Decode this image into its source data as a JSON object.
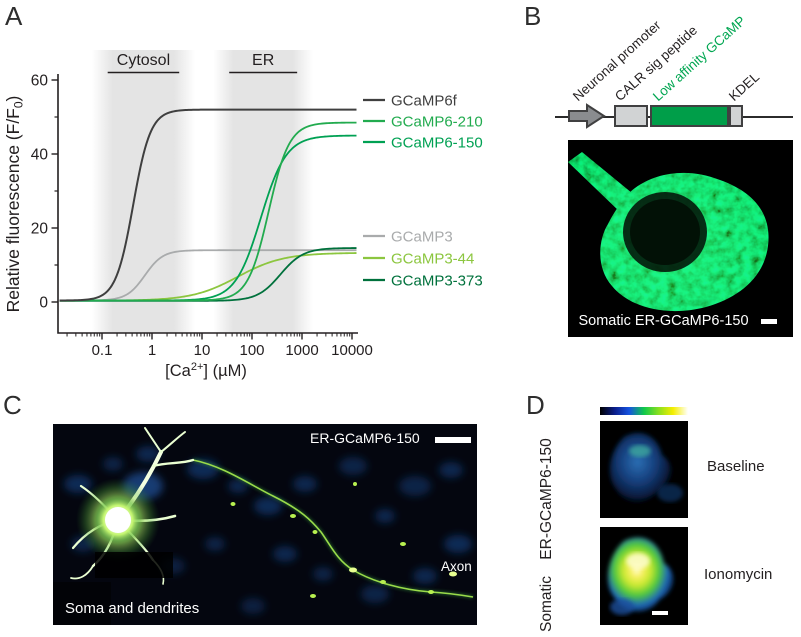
{
  "panel_a": {
    "label": "A"
  },
  "chart_data": {
    "type": "line",
    "x_scale": "log",
    "xlabel": {
      "pre": "[Ca",
      "sup": "2+",
      "post": "] (µM)"
    },
    "ylabel": {
      "pre": "Relative fluorescence (F/F",
      "sub": "0",
      "post": ")"
    },
    "xlim_uM": [
      0.014,
      13000
    ],
    "ylim": [
      0,
      60
    ],
    "xticks": [
      0.1,
      1,
      10,
      100,
      1000,
      10000
    ],
    "xtick_labels": [
      "0.1",
      "1",
      "10",
      "100",
      "1000",
      "10000"
    ],
    "yticks": [
      0,
      20,
      40,
      60
    ],
    "yticks_minor": [
      10,
      30,
      50
    ],
    "grid": false,
    "regions": [
      {
        "label": "Cytosol",
        "from_uM": 0.13,
        "to_uM": 3.5
      },
      {
        "label": "ER",
        "from_uM": 35,
        "to_uM": 800
      }
    ],
    "model": "F = base + (plateau - base) / (1 + (Kd/x)^hill)",
    "series": [
      {
        "name": "GCaMP3",
        "color": "#a9abac",
        "kd_uM": 0.72,
        "hill": 2.4,
        "plateau_FF0": 14.0,
        "base_FF0": 0.4,
        "localization": "Cytosol"
      },
      {
        "name": "GCaMP3-44",
        "color": "#8cc63f",
        "kd_uM": 52,
        "hill": 0.95,
        "plateau_FF0": 13.3,
        "base_FF0": 0.35,
        "localization": "ER"
      },
      {
        "name": "GCaMP3-373",
        "color": "#00713c",
        "kd_uM": 370,
        "hill": 1.9,
        "plateau_FF0": 14.6,
        "base_FF0": 0.3,
        "localization": "ER"
      },
      {
        "name": "GCaMP6-150",
        "color": "#00a153",
        "kd_uM": 150,
        "hill": 1.7,
        "plateau_FF0": 45.0,
        "base_FF0": 0.4,
        "localization": "ER"
      },
      {
        "name": "GCaMP6-210",
        "color": "#22ab4f",
        "kd_uM": 215,
        "hill": 2.1,
        "plateau_FF0": 48.5,
        "base_FF0": 0.4,
        "localization": "ER"
      },
      {
        "name": "GCaMP6f",
        "color": "#3f3f3f",
        "kd_uM": 0.42,
        "hill": 2.5,
        "plateau_FF0": 52.0,
        "base_FF0": 0.4,
        "localization": "Cytosol"
      }
    ],
    "legend": {
      "position": "right",
      "top_group": [
        "GCaMP6f",
        "GCaMP6-210",
        "GCaMP6-150"
      ],
      "bottom_group": [
        "GCaMP3",
        "GCaMP3-44",
        "GCaMP3-373"
      ]
    }
  },
  "panel_b": {
    "label": "B",
    "construct": {
      "labels": [
        {
          "text": "Neuronal promoter",
          "color": "#231f20"
        },
        {
          "text": "CALR sig peptide",
          "color": "#231f20"
        },
        {
          "text": "Low affinity GCaMP",
          "color": "#00a651"
        },
        {
          "text": "KDEL",
          "color": "#231f20"
        }
      ],
      "arrow_color": "#8a8c8f",
      "box_gray": "#d1d3d4",
      "box_green": "#009e49"
    },
    "image_caption": "Somatic ER-GCaMP6-150"
  },
  "panel_c": {
    "label": "C",
    "labels": {
      "construct": "ER-GCaMP6-150",
      "axon": "Axon",
      "soma": "Soma and dendrites"
    }
  },
  "panel_d": {
    "label": "D",
    "side_label": "Somatic ER-GCaMP6-150",
    "conditions": [
      "Baseline",
      "Ionomycin"
    ],
    "colorbar_colors": [
      "#000000",
      "#0a1e8c",
      "#1553e0",
      "#10c84b",
      "#8ce01e",
      "#f5ee00",
      "#ffffff"
    ]
  }
}
